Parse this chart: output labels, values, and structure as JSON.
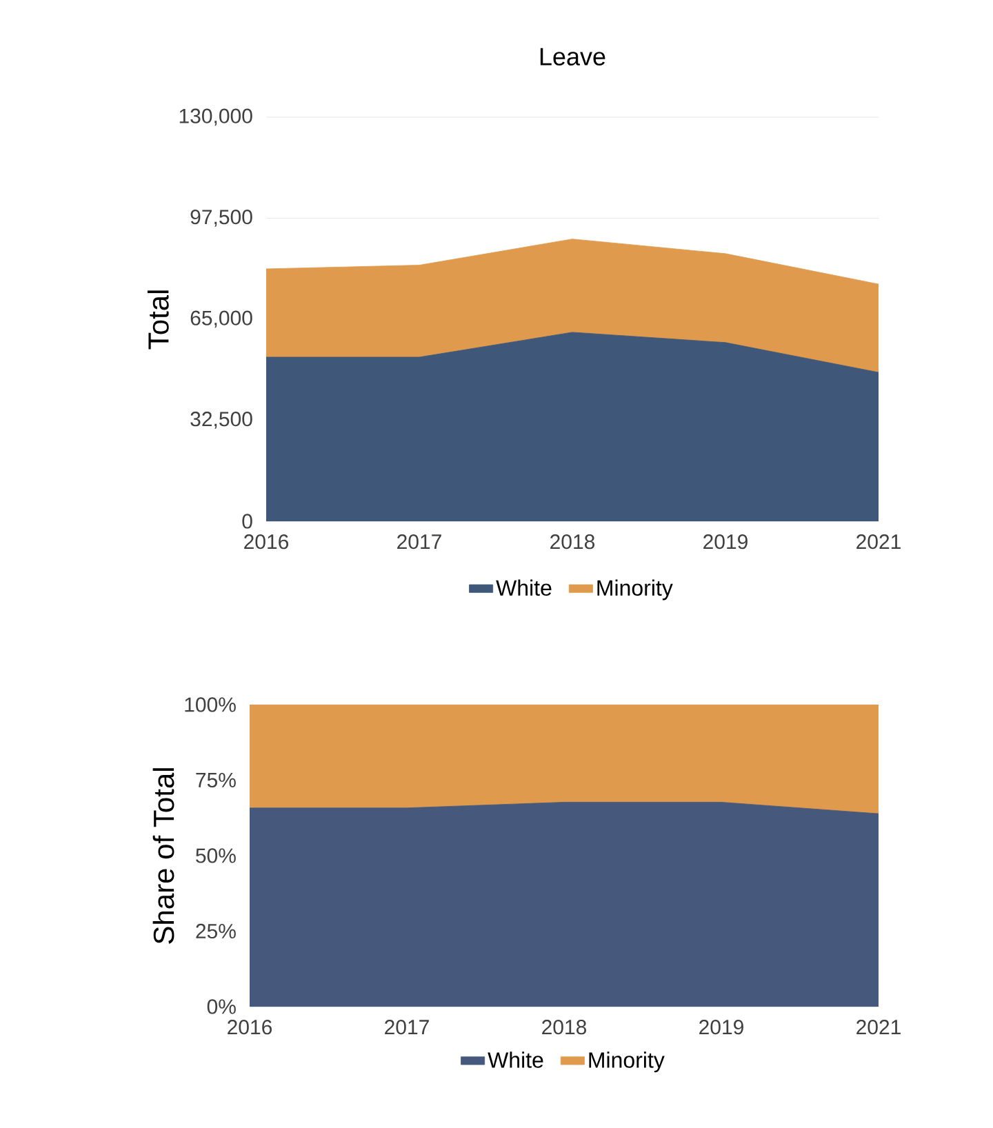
{
  "chart_data": [
    {
      "type": "area",
      "title": "Leave",
      "ylabel": "Total",
      "stacked": true,
      "categories": [
        "2016",
        "2017",
        "2018",
        "2019",
        "2021"
      ],
      "series": [
        {
          "name": "White",
          "color": "#3f5779",
          "values": [
            52800,
            52800,
            60800,
            57500,
            47900
          ]
        },
        {
          "name": "Minority",
          "color": "#e09a4d",
          "values": [
            28400,
            29600,
            30000,
            28600,
            28400
          ]
        }
      ],
      "ylim": [
        0,
        130000
      ],
      "yticks": [
        {
          "value": 0,
          "label": "0"
        },
        {
          "value": 32500,
          "label": "32,500"
        },
        {
          "value": 65000,
          "label": "65,000"
        },
        {
          "value": 97500,
          "label": "97,500"
        },
        {
          "value": 130000,
          "label": "130,000"
        }
      ],
      "grid": "y",
      "legend": "bottom"
    },
    {
      "type": "area",
      "ylabel": "Share of Total",
      "stacked": true,
      "categories": [
        "2016",
        "2017",
        "2018",
        "2019",
        "2021"
      ],
      "series": [
        {
          "name": "White",
          "color": "#46597c",
          "values": [
            65.8,
            65.8,
            67.7,
            67.7,
            63.9
          ]
        },
        {
          "name": "Minority",
          "color": "#e09a4d",
          "values": [
            34.2,
            34.2,
            32.3,
            32.3,
            36.1
          ]
        }
      ],
      "ylim": [
        0,
        100
      ],
      "yticks": [
        {
          "value": 0,
          "label": "0%"
        },
        {
          "value": 25,
          "label": "25%"
        },
        {
          "value": 50,
          "label": "50%"
        },
        {
          "value": 75,
          "label": "75%"
        },
        {
          "value": 100,
          "label": "100%"
        }
      ],
      "grid": "y",
      "legend": "bottom"
    }
  ]
}
